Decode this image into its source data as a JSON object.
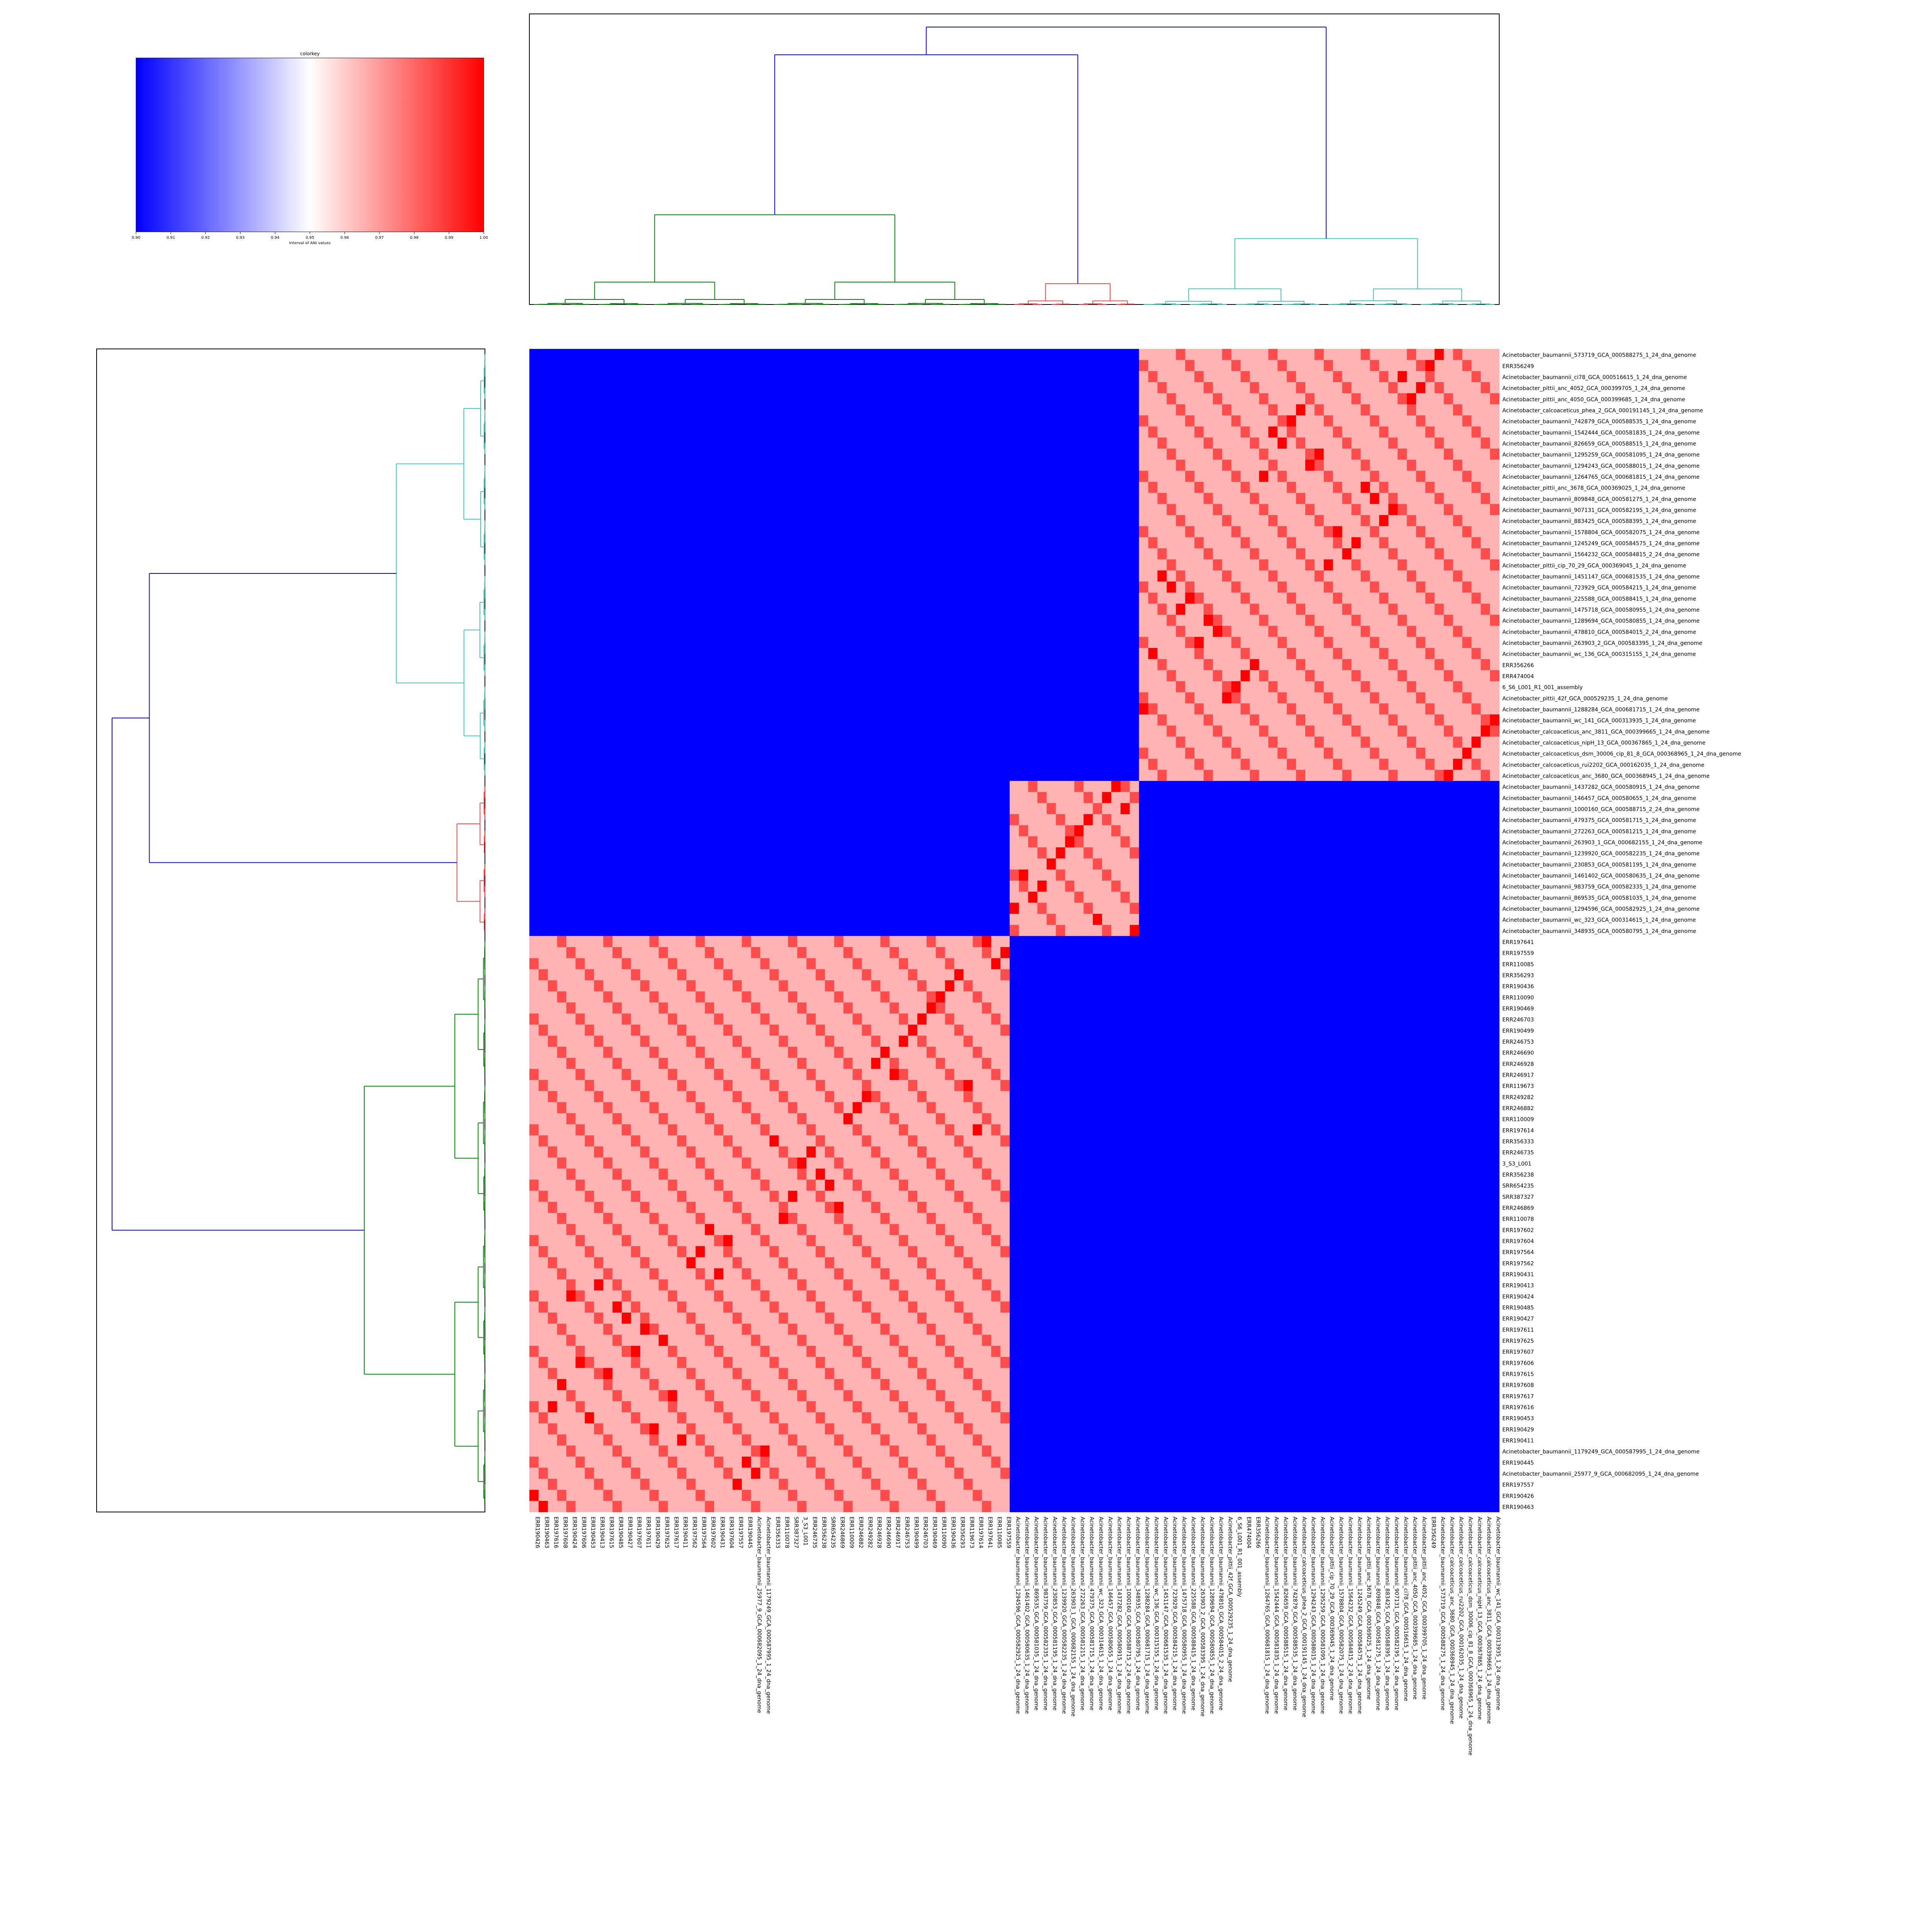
{
  "chart_data": {
    "type": "heatmap",
    "title": "",
    "xlabel": "",
    "ylabel": "",
    "colorkey": {
      "title": "colorkey",
      "xlabel": "Interval of ANI values",
      "ticks": [
        "0.90",
        "0.91",
        "0.92",
        "0.93",
        "0.94",
        "0.95",
        "0.96",
        "0.97",
        "0.98",
        "0.99",
        "1.00"
      ],
      "range": [
        0.9,
        1.0
      ],
      "colors": [
        "#0000ff",
        "#ffffff",
        "#ff0000"
      ]
    },
    "dendrogram_colors": {
      "root": "#0000ff",
      "cyan": "#40c0c0",
      "red": "#ff4040",
      "green": "#008000"
    },
    "rows": [
      "Acinetobacter_baumannii_573719_GCA_000588275_1_24_dna_genome",
      "ERR356249",
      "Acinetobacter_baumannii_ci78_GCA_000516615_1_24_dna_genome",
      "Acinetobacter_pittii_anc_4052_GCA_000399705_1_24_dna_genome",
      "Acinetobacter_pittii_anc_4050_GCA_000399685_1_24_dna_genome",
      "Acinetobacter_calcoaceticus_phea_2_GCA_000191145_1_24_dna_genome",
      "Acinetobacter_baumannii_742879_GCA_000588535_1_24_dna_genome",
      "Acinetobacter_baumannii_1542444_GCA_000581835_1_24_dna_genome",
      "Acinetobacter_baumannii_826659_GCA_000588515_1_24_dna_genome",
      "Acinetobacter_baumannii_1295259_GCA_000581095_1_24_dna_genome",
      "Acinetobacter_baumannii_1294243_GCA_000588015_1_24_dna_genome",
      "Acinetobacter_baumannii_1264765_GCA_000681815_1_24_dna_genome",
      "Acinetobacter_pittii_anc_3678_GCA_000369025_1_24_dna_genome",
      "Acinetobacter_baumannii_809848_GCA_000581275_1_24_dna_genome",
      "Acinetobacter_baumannii_907131_GCA_000582195_1_24_dna_genome",
      "Acinetobacter_baumannii_883425_GCA_000588395_1_24_dna_genome",
      "Acinetobacter_baumannii_1578804_GCA_000582075_1_24_dna_genome",
      "Acinetobacter_baumannii_1245249_GCA_000584575_1_24_dna_genome",
      "Acinetobacter_baumannii_1564232_GCA_000584815_2_24_dna_genome",
      "Acinetobacter_pittii_cip_70_29_GCA_000369045_1_24_dna_genome",
      "Acinetobacter_baumannii_1451147_GCA_000681535_1_24_dna_genome",
      "Acinetobacter_baumannii_723929_GCA_000584215_1_24_dna_genome",
      "Acinetobacter_baumannii_225588_GCA_000588415_1_24_dna_genome",
      "Acinetobacter_baumannii_1475718_GCA_000580955_1_24_dna_genome",
      "Acinetobacter_baumannii_1289694_GCA_000580855_1_24_dna_genome",
      "Acinetobacter_baumannii_478810_GCA_000584015_2_24_dna_genome",
      "Acinetobacter_baumannii_263903_2_GCA_000583395_1_24_dna_genome",
      "Acinetobacter_baumannii_wc_136_GCA_000315155_1_24_dna_genome",
      "ERR356266",
      "ERR474004",
      "6_S6_L001_R1_001_assembly",
      "Acinetobacter_pittii_42f_GCA_000529235_1_24_dna_genome",
      "Acinetobacter_baumannii_1288284_GCA_000681715_1_24_dna_genome",
      "Acinetobacter_baumannii_wc_141_GCA_000313935_1_24_dna_genome",
      "Acinetobacter_calcoaceticus_anc_3811_GCA_000399665_1_24_dna_genome",
      "Acinetobacter_calcoaceticus_nipH_13_GCA_000367865_1_24_dna_genome",
      "Acinetobacter_calcoaceticus_dsm_30006_cip_81_8_GCA_000368965_1_24_dna_genome",
      "Acinetobacter_calcoaceticus_rui2202_GCA_000162035_1_24_dna_genome",
      "Acinetobacter_calcoaceticus_anc_3680_GCA_000368945_1_24_dna_genome",
      "Acinetobacter_baumannii_1437282_GCA_000580915_1_24_dna_genome",
      "Acinetobacter_baumannii_146457_GCA_000580655_1_24_dna_genome",
      "Acinetobacter_baumannii_1000160_GCA_000588715_2_24_dna_genome",
      "Acinetobacter_baumannii_479375_GCA_000581715_1_24_dna_genome",
      "Acinetobacter_baumannii_272263_GCA_000581215_1_24_dna_genome",
      "Acinetobacter_baumannii_263903_1_GCA_000682155_1_24_dna_genome",
      "Acinetobacter_baumannii_1239920_GCA_000582235_1_24_dna_genome",
      "Acinetobacter_baumannii_230853_GCA_000581195_1_24_dna_genome",
      "Acinetobacter_baumannii_1461402_GCA_000580635_1_24_dna_genome",
      "Acinetobacter_baumannii_983759_GCA_000582335_1_24_dna_genome",
      "Acinetobacter_baumannii_869535_GCA_000581035_1_24_dna_genome",
      "Acinetobacter_baumannii_1294596_GCA_000582925_1_24_dna_genome",
      "Acinetobacter_baumannii_wc_323_GCA_000314615_1_24_dna_genome",
      "Acinetobacter_baumannii_348935_GCA_000580795_1_24_dna_genome",
      "ERR197641",
      "ERR197559",
      "ERR110085",
      "ERR356293",
      "ERR190436",
      "ERR110090",
      "ERR190469",
      "ERR246703",
      "ERR190499",
      "ERR246753",
      "ERR246690",
      "ERR246928",
      "ERR246917",
      "ERR119673",
      "ERR249282",
      "ERR246882",
      "ERR110009",
      "ERR197614",
      "ERR356333",
      "ERR246735",
      "3_S3_L001",
      "ERR356238",
      "SRR654235",
      "SRR387327",
      "ERR246869",
      "ERR110078",
      "ERR197602",
      "ERR197604",
      "ERR197564",
      "ERR197562",
      "ERR190431",
      "ERR190413",
      "ERR190424",
      "ERR190485",
      "ERR190427",
      "ERR197611",
      "ERR197625",
      "ERR197607",
      "ERR197606",
      "ERR197615",
      "ERR197608",
      "ERR197617",
      "ERR197616",
      "ERR190453",
      "ERR190429",
      "ERR190411",
      "Acinetobacter_baumannii_1179249_GCA_000587995_1_24_dna_genome",
      "ERR190445",
      "Acinetobacter_baumannii_25977_9_GCA_000682095_1_24_dna_genome",
      "ERR197557",
      "ERR190426",
      "ERR190463"
    ],
    "cols": [
      "ERR190426",
      "ERR190463",
      "ERR197616",
      "ERR197608",
      "ERR190424",
      "ERR197606",
      "ERR190453",
      "ERR190413",
      "ERR197615",
      "ERR190485",
      "ERR190427",
      "ERR197607",
      "ERR197611",
      "ERR190429",
      "ERR197625",
      "ERR197617",
      "ERR190411",
      "ERR197562",
      "ERR197564",
      "ERR197602",
      "ERR190431",
      "ERR197604",
      "ERR197557",
      "ERR190445",
      "Acinetobacter_baumannii_25977_9_GCA_000682095_1_24_dna_genome",
      "Acinetobacter_baumannii_1179249_GCA_000587995_1_24_dna_genome",
      "ERR356333",
      "ERR110078",
      "SRR387327",
      "3_S3_L001",
      "ERR246735",
      "ERR356238",
      "SRR654235",
      "ERR246869",
      "ERR110009",
      "ERR246882",
      "ERR249282",
      "ERR246928",
      "ERR246690",
      "ERR246917",
      "ERR246753",
      "ERR190499",
      "ERR246703",
      "ERR190469",
      "ERR110090",
      "ERR190436",
      "ERR356293",
      "ERR119673",
      "ERR197614",
      "ERR197641",
      "ERR110085",
      "ERR197559",
      "Acinetobacter_baumannii_1294596_GCA_000582925_1_24_dna_genome",
      "Acinetobacter_baumannii_1461402_GCA_000580635_1_24_dna_genome",
      "Acinetobacter_baumannii_869535_GCA_000581035_1_24_dna_genome",
      "Acinetobacter_baumannii_983759_GCA_000582335_1_24_dna_genome",
      "Acinetobacter_baumannii_230853_GCA_000581195_1_24_dna_genome",
      "Acinetobacter_baumannii_1239920_GCA_000582235_1_24_dna_genome",
      "Acinetobacter_baumannii_263903_1_GCA_000682155_1_24_dna_genome",
      "Acinetobacter_baumannii_272263_GCA_000581215_1_24_dna_genome",
      "Acinetobacter_baumannii_479375_GCA_000581715_1_24_dna_genome",
      "Acinetobacter_baumannii_wc_323_GCA_000314615_1_24_dna_genome",
      "Acinetobacter_baumannii_146457_GCA_000580655_1_24_dna_genome",
      "Acinetobacter_baumannii_1437282_GCA_000580915_1_24_dna_genome",
      "Acinetobacter_baumannii_1000160_GCA_000588715_2_24_dna_genome",
      "Acinetobacter_baumannii_348935_GCA_000580795_1_24_dna_genome",
      "Acinetobacter_baumannii_1288284_GCA_000681715_1_24_dna_genome",
      "Acinetobacter_baumannii_wc_136_GCA_000315155_1_24_dna_genome",
      "Acinetobacter_baumannii_1451147_GCA_000681535_1_24_dna_genome",
      "Acinetobacter_baumannii_723929_GCA_000584215_1_24_dna_genome",
      "Acinetobacter_baumannii_1475718_GCA_000580955_1_24_dna_genome",
      "Acinetobacter_baumannii_225588_GCA_000588415_1_24_dna_genome",
      "Acinetobacter_baumannii_263903_2_GCA_000583395_1_24_dna_genome",
      "Acinetobacter_baumannii_1289694_GCA_000580855_1_24_dna_genome",
      "Acinetobacter_baumannii_478810_GCA_000584015_2_24_dna_genome",
      "Acinetobacter_pittii_42f_GCA_000529235_1_24_dna_genome",
      "6_S6_L001_R1_001_assembly",
      "ERR474004",
      "ERR356266",
      "Acinetobacter_baumannii_1264765_GCA_000681815_1_24_dna_genome",
      "Acinetobacter_baumannii_1542444_GCA_000581835_1_24_dna_genome",
      "Acinetobacter_baumannii_826659_GCA_000588515_1_24_dna_genome",
      "Acinetobacter_baumannii_742879_GCA_000588535_1_24_dna_genome",
      "Acinetobacter_calcoaceticus_phea_2_GCA_000191145_1_24_dna_genome",
      "Acinetobacter_baumannii_1294243_GCA_000588015_1_24_dna_genome",
      "Acinetobacter_baumannii_1295259_GCA_000581095_1_24_dna_genome",
      "Acinetobacter_pittii_cip_70_29_GCA_000369045_1_24_dna_genome",
      "Acinetobacter_baumannii_1578804_GCA_000582075_1_24_dna_genome",
      "Acinetobacter_baumannii_1564232_GCA_000584815_2_24_dna_genome",
      "Acinetobacter_baumannii_1245249_GCA_000584575_1_24_dna_genome",
      "Acinetobacter_pittii_anc_3678_GCA_000369025_1_24_dna_genome",
      "Acinetobacter_baumannii_809848_GCA_000581275_1_24_dna_genome",
      "Acinetobacter_baumannii_883425_GCA_000588395_1_24_dna_genome",
      "Acinetobacter_baumannii_907131_GCA_000582195_1_24_dna_genome",
      "Acinetobacter_baumannii_ci78_GCA_000516615_1_24_dna_genome",
      "Acinetobacter_pittii_anc_4050_GCA_000399685_1_24_dna_genome",
      "Acinetobacter_pittii_anc_4052_GCA_000399705_1_24_dna_genome",
      "ERR356249",
      "Acinetobacter_baumannii_573719_GCA_000588275_1_24_dna_genome",
      "Acinetobacter_calcoaceticus_anc_3680_GCA_000368945_1_24_dna_genome",
      "Acinetobacter_calcoaceticus_rui2202_GCA_000162035_1_24_dna_genome",
      "Acinetobacter_calcoaceticus_dsm_30006_cip_81_8_GCA_000368965_1_24_dna_genome",
      "Acinetobacter_calcoaceticus_nipH_13_GCA_000367865_1_24_dna_genome",
      "Acinetobacter_calcoaceticus_anc_3811_GCA_000399665_1_24_dna_genome",
      "Acinetobacter_baumannii_wc_141_GCA_000313935_1_24_dna_genome"
    ],
    "row_clusters": [
      {
        "name": "cyan",
        "start": 0,
        "end": 38
      },
      {
        "name": "red",
        "start": 39,
        "end": 52
      },
      {
        "name": "green",
        "start": 53,
        "end": 104
      }
    ],
    "col_clusters": [
      {
        "name": "green",
        "start": 0,
        "end": 51
      },
      {
        "name": "red",
        "start": 52,
        "end": 65
      },
      {
        "name": "cyan",
        "start": 66,
        "end": 104
      }
    ],
    "block_values": {
      "same_cluster_near": 0.985,
      "same_cluster": 0.965,
      "sister_cluster": 0.925,
      "distant": 0.9,
      "diagonal": 1.0
    }
  }
}
